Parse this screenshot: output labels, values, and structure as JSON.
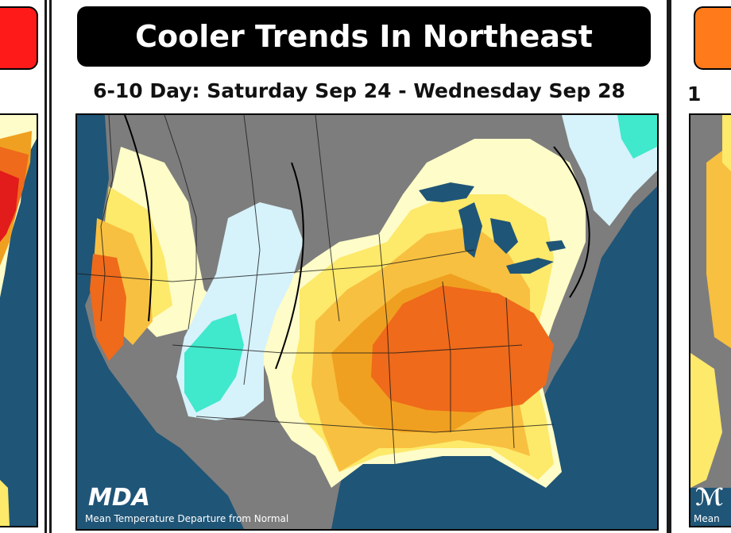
{
  "center": {
    "title": "Cooler Trends In Northeast",
    "subtitle": "6-10 Day: Saturday Sep 24 - Wednesday Sep 28",
    "logo": "MDA",
    "caption": "Mean Temperature Departure from Normal"
  },
  "right": {
    "subtitle_fragment": "1",
    "caption_fragment": "Mean"
  },
  "colors": {
    "ocean": "#1f5577",
    "land_gray": "#7d7d7d",
    "pale_yellow": "#fefcc8",
    "yellow": "#fde96a",
    "light_orange": "#f8c040",
    "orange": "#f0a020",
    "dark_orange": "#ef6a1a",
    "red": "#e21b1b",
    "light_blue": "#d6f2fb",
    "teal": "#40e8cc",
    "left_banner": "#ff1a1a",
    "right_banner": "#ff7a1a"
  }
}
